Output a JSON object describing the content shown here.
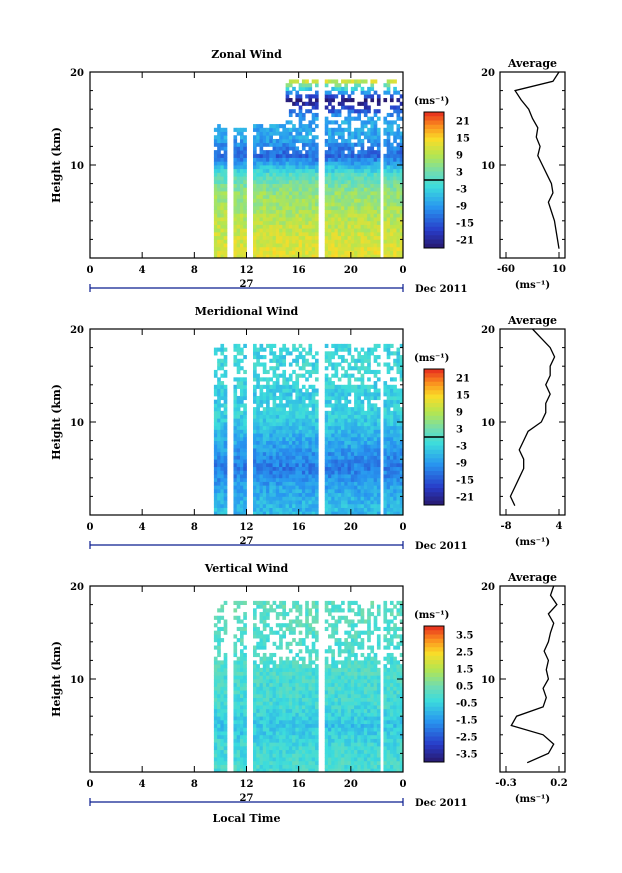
{
  "panels": [
    {
      "title": "Zonal Wind",
      "ylabel": "Height (km)",
      "yticks": [
        "20",
        "10"
      ],
      "ylim": [
        0,
        20
      ],
      "xticks": [
        "0",
        "4",
        "8",
        "12",
        "16",
        "20",
        "0"
      ],
      "day_label": "27",
      "month_label": "Dec 2011",
      "colorbar": {
        "unit": "(ms⁻¹)",
        "ticks": [
          "21",
          "15",
          "9",
          "3",
          "-3",
          "-9",
          "-15",
          "-21"
        ],
        "min": -24,
        "max": 24
      },
      "avg": {
        "title": "Average",
        "xticks": [
          "-60",
          "10"
        ],
        "xlabel": "(ms⁻¹)",
        "yticks": [
          "20",
          "10"
        ]
      }
    },
    {
      "title": "Meridional Wind",
      "ylabel": "Height (km)",
      "yticks": [
        "20",
        "10"
      ],
      "ylim": [
        0,
        20
      ],
      "xticks": [
        "0",
        "4",
        "8",
        "12",
        "16",
        "20",
        "0"
      ],
      "day_label": "27",
      "month_label": "Dec 2011",
      "colorbar": {
        "unit": "(ms⁻¹)",
        "ticks": [
          "21",
          "15",
          "9",
          "3",
          "-3",
          "-9",
          "-15",
          "-21"
        ],
        "min": -24,
        "max": 24
      },
      "avg": {
        "title": "Average",
        "xticks": [
          "-8",
          "4"
        ],
        "xlabel": "(ms⁻¹)",
        "yticks": [
          "20",
          "10"
        ]
      }
    },
    {
      "title": "Vertical Wind",
      "ylabel": "Height (km)",
      "yticks": [
        "20",
        "10"
      ],
      "ylim": [
        0,
        20
      ],
      "xticks": [
        "0",
        "4",
        "8",
        "12",
        "16",
        "20",
        "0"
      ],
      "day_label": "27",
      "month_label": "Dec 2011",
      "colorbar": {
        "unit": "(ms⁻¹)",
        "ticks": [
          "3.5",
          "2.5",
          "1.5",
          "0.5",
          "-0.5",
          "-1.5",
          "-2.5",
          "-3.5"
        ],
        "min": -4,
        "max": 4
      },
      "avg": {
        "title": "Average",
        "xticks": [
          "-0.3",
          "0.2"
        ],
        "xlabel": "(ms⁻¹)",
        "yticks": [
          "20",
          "10"
        ]
      }
    }
  ],
  "xlabel": "Local Time",
  "chart_data": [
    {
      "type": "heatmap",
      "title": "Zonal Wind",
      "xlabel": "Local Time",
      "ylabel": "Height (km)",
      "xlim": [
        0,
        24
      ],
      "ylim": [
        0,
        20
      ],
      "data_time_range": [
        9.5,
        24
      ],
      "colorbar_range": [
        -24,
        24
      ],
      "colorbar_unit": "(ms⁻¹)",
      "profile_by_height": {
        "height_km": [
          1,
          3,
          5,
          7,
          9,
          11,
          13,
          15,
          17,
          19
        ],
        "value": [
          12,
          10,
          8,
          6,
          0,
          -14,
          -8,
          -8,
          -24,
          10
        ]
      },
      "average_profile": {
        "x_range": [
          -60,
          10
        ],
        "height_km": [
          1,
          2,
          3,
          4,
          5,
          6,
          7,
          8,
          9,
          10,
          11,
          12,
          13,
          14,
          15,
          16,
          17,
          18,
          19,
          20
        ],
        "value": [
          10,
          8,
          6,
          4,
          0,
          -4,
          2,
          0,
          -6,
          -12,
          -18,
          -15,
          -20,
          -18,
          -25,
          -30,
          -40,
          -48,
          2,
          10
        ]
      }
    },
    {
      "type": "heatmap",
      "title": "Meridional Wind",
      "xlabel": "Local Time",
      "ylabel": "Height (km)",
      "xlim": [
        0,
        24
      ],
      "ylim": [
        0,
        20
      ],
      "data_time_range": [
        9.5,
        24
      ],
      "colorbar_range": [
        -24,
        24
      ],
      "colorbar_unit": "(ms⁻¹)",
      "profile_by_height": {
        "height_km": [
          1,
          3,
          5,
          7,
          9,
          11,
          13,
          15,
          17,
          19
        ],
        "value": [
          -6,
          -8,
          -12,
          -9,
          -6,
          -3,
          -4,
          -2,
          -3,
          -2
        ]
      },
      "average_profile": {
        "x_range": [
          -8,
          4
        ],
        "height_km": [
          1,
          2,
          3,
          4,
          5,
          6,
          7,
          8,
          9,
          10,
          11,
          12,
          13,
          14,
          15,
          16,
          17,
          18,
          19,
          20
        ],
        "value": [
          -6,
          -7,
          -6,
          -5,
          -4,
          -4,
          -5,
          -4,
          -3,
          0,
          1,
          1,
          2,
          1,
          2,
          2,
          3,
          2,
          0,
          -2
        ]
      }
    },
    {
      "type": "heatmap",
      "title": "Vertical Wind",
      "xlabel": "Local Time",
      "ylabel": "Height (km)",
      "xlim": [
        0,
        24
      ],
      "ylim": [
        0,
        20
      ],
      "data_time_range": [
        9.5,
        24
      ],
      "colorbar_range": [
        -4,
        4
      ],
      "colorbar_unit": "(ms⁻¹)",
      "profile_by_height": {
        "height_km": [
          1,
          3,
          5,
          7,
          9,
          11,
          13,
          15,
          17,
          19
        ],
        "value": [
          -0.2,
          -0.4,
          -0.8,
          -0.3,
          -0.2,
          -0.1,
          -0.1,
          0,
          0.1,
          0.1
        ]
      },
      "average_profile": {
        "x_range": [
          -0.3,
          0.2
        ],
        "height_km": [
          1,
          2,
          3,
          4,
          5,
          6,
          7,
          8,
          9,
          10,
          11,
          12,
          13,
          14,
          15,
          16,
          17,
          18,
          19,
          20
        ],
        "value": [
          -0.1,
          0.1,
          0.15,
          0.05,
          -0.25,
          -0.2,
          0.05,
          0.08,
          0.05,
          0.1,
          0.08,
          0.1,
          0.06,
          0.1,
          0.12,
          0.15,
          0.1,
          0.18,
          0.12,
          0.15
        ]
      }
    }
  ]
}
